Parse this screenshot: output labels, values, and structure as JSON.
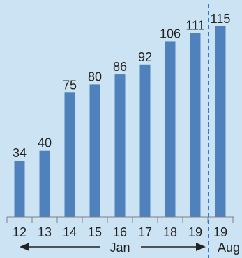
{
  "chart_data": {
    "type": "bar",
    "categories": [
      "12",
      "13",
      "14",
      "15",
      "16",
      "17",
      "18",
      "19",
      "19"
    ],
    "values": [
      34,
      40,
      75,
      80,
      86,
      92,
      106,
      111,
      115
    ],
    "bar_color": "#4f81bd",
    "divider_color": "#2e75d6",
    "axis_color": "#7f7f7f",
    "ylim": [
      0,
      115
    ],
    "group_labels": {
      "jan": "Jan",
      "aug": "Aug"
    }
  }
}
